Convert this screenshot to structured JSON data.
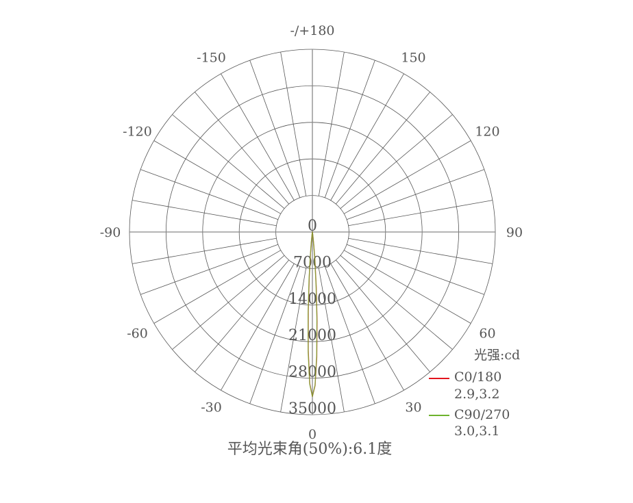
{
  "chart_data": {
    "type": "polar-line",
    "title": "平均光束角(50%):6.1度",
    "unit_label": "光强:cd",
    "radial_ticks": [
      0,
      7000,
      14000,
      21000,
      28000,
      35000
    ],
    "radial_range": [
      0,
      35000
    ],
    "angle_labels": [
      {
        "angle": 0,
        "label": "0"
      },
      {
        "angle": 30,
        "label": "30"
      },
      {
        "angle": 60,
        "label": "60"
      },
      {
        "angle": 90,
        "label": "90"
      },
      {
        "angle": 120,
        "label": "120"
      },
      {
        "angle": 150,
        "label": "150"
      },
      {
        "angle": 180,
        "label": "-/+180"
      },
      {
        "angle": -150,
        "label": "-150"
      },
      {
        "angle": -120,
        "label": "-120"
      },
      {
        "angle": -90,
        "label": "-90"
      },
      {
        "angle": -60,
        "label": "-60"
      },
      {
        "angle": -30,
        "label": "-30"
      }
    ],
    "grid": true,
    "radial_grid_step_deg": 10,
    "legend_position": "bottom-right",
    "angles": [
      -8,
      -7,
      -6,
      -5,
      -4,
      -3,
      -2,
      -1,
      0,
      1,
      2,
      3,
      4,
      5,
      6,
      7,
      8
    ],
    "series": [
      {
        "name": "C0/180",
        "sub": "2.9,3.2",
        "color": "#e3141c",
        "values": [
          160,
          555,
          1620,
          4010,
          8420,
          14990,
          22650,
          29010,
          31500,
          29440,
          24030,
          17130,
          10660,
          5790,
          2750,
          1140,
          413
        ]
      },
      {
        "name": "C90/270",
        "sub": "3.0,3.1",
        "color": "#6cb22c",
        "values": [
          228,
          722,
          1970,
          4590,
          9170,
          15750,
          23150,
          29170,
          31500,
          29310,
          23600,
          16460,
          9930,
          5190,
          2350,
          919,
          311
        ]
      }
    ]
  }
}
